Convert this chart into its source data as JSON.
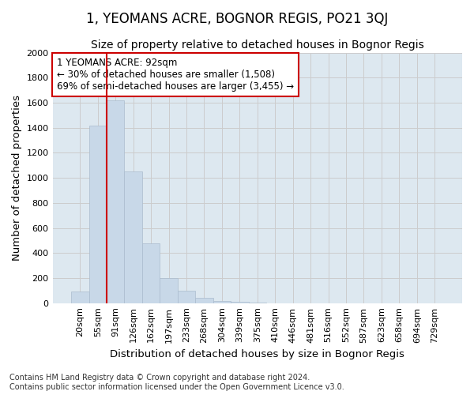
{
  "title": "1, YEOMANS ACRE, BOGNOR REGIS, PO21 3QJ",
  "subtitle": "Size of property relative to detached houses in Bognor Regis",
  "xlabel": "Distribution of detached houses by size in Bognor Regis",
  "ylabel": "Number of detached properties",
  "footnote1": "Contains HM Land Registry data © Crown copyright and database right 2024.",
  "footnote2": "Contains public sector information licensed under the Open Government Licence v3.0.",
  "bin_labels": [
    "20sqm",
    "55sqm",
    "91sqm",
    "126sqm",
    "162sqm",
    "197sqm",
    "233sqm",
    "268sqm",
    "304sqm",
    "339sqm",
    "375sqm",
    "410sqm",
    "446sqm",
    "481sqm",
    "516sqm",
    "552sqm",
    "587sqm",
    "623sqm",
    "658sqm",
    "694sqm",
    "729sqm"
  ],
  "bar_values": [
    90,
    1420,
    1620,
    1050,
    480,
    200,
    100,
    40,
    20,
    10,
    5,
    0,
    0,
    0,
    0,
    0,
    0,
    0,
    0,
    0,
    0
  ],
  "bar_color": "#c8d8e8",
  "bar_edge_color": "#aabcce",
  "vline_index": 2,
  "property_line_label": "1 YEOMANS ACRE: 92sqm",
  "annotation_line1": "← 30% of detached houses are smaller (1,508)",
  "annotation_line2": "69% of semi-detached houses are larger (3,455) →",
  "annotation_box_color": "white",
  "annotation_border_color": "#cc0000",
  "vline_color": "#cc0000",
  "ylim": [
    0,
    2000
  ],
  "yticks": [
    0,
    200,
    400,
    600,
    800,
    1000,
    1200,
    1400,
    1600,
    1800,
    2000
  ],
  "grid_color": "#cccccc",
  "background_color": "#dde8f0",
  "title_fontsize": 12,
  "subtitle_fontsize": 10,
  "axis_label_fontsize": 9.5,
  "tick_fontsize": 8,
  "annotation_fontsize": 8.5,
  "footnote_fontsize": 7
}
